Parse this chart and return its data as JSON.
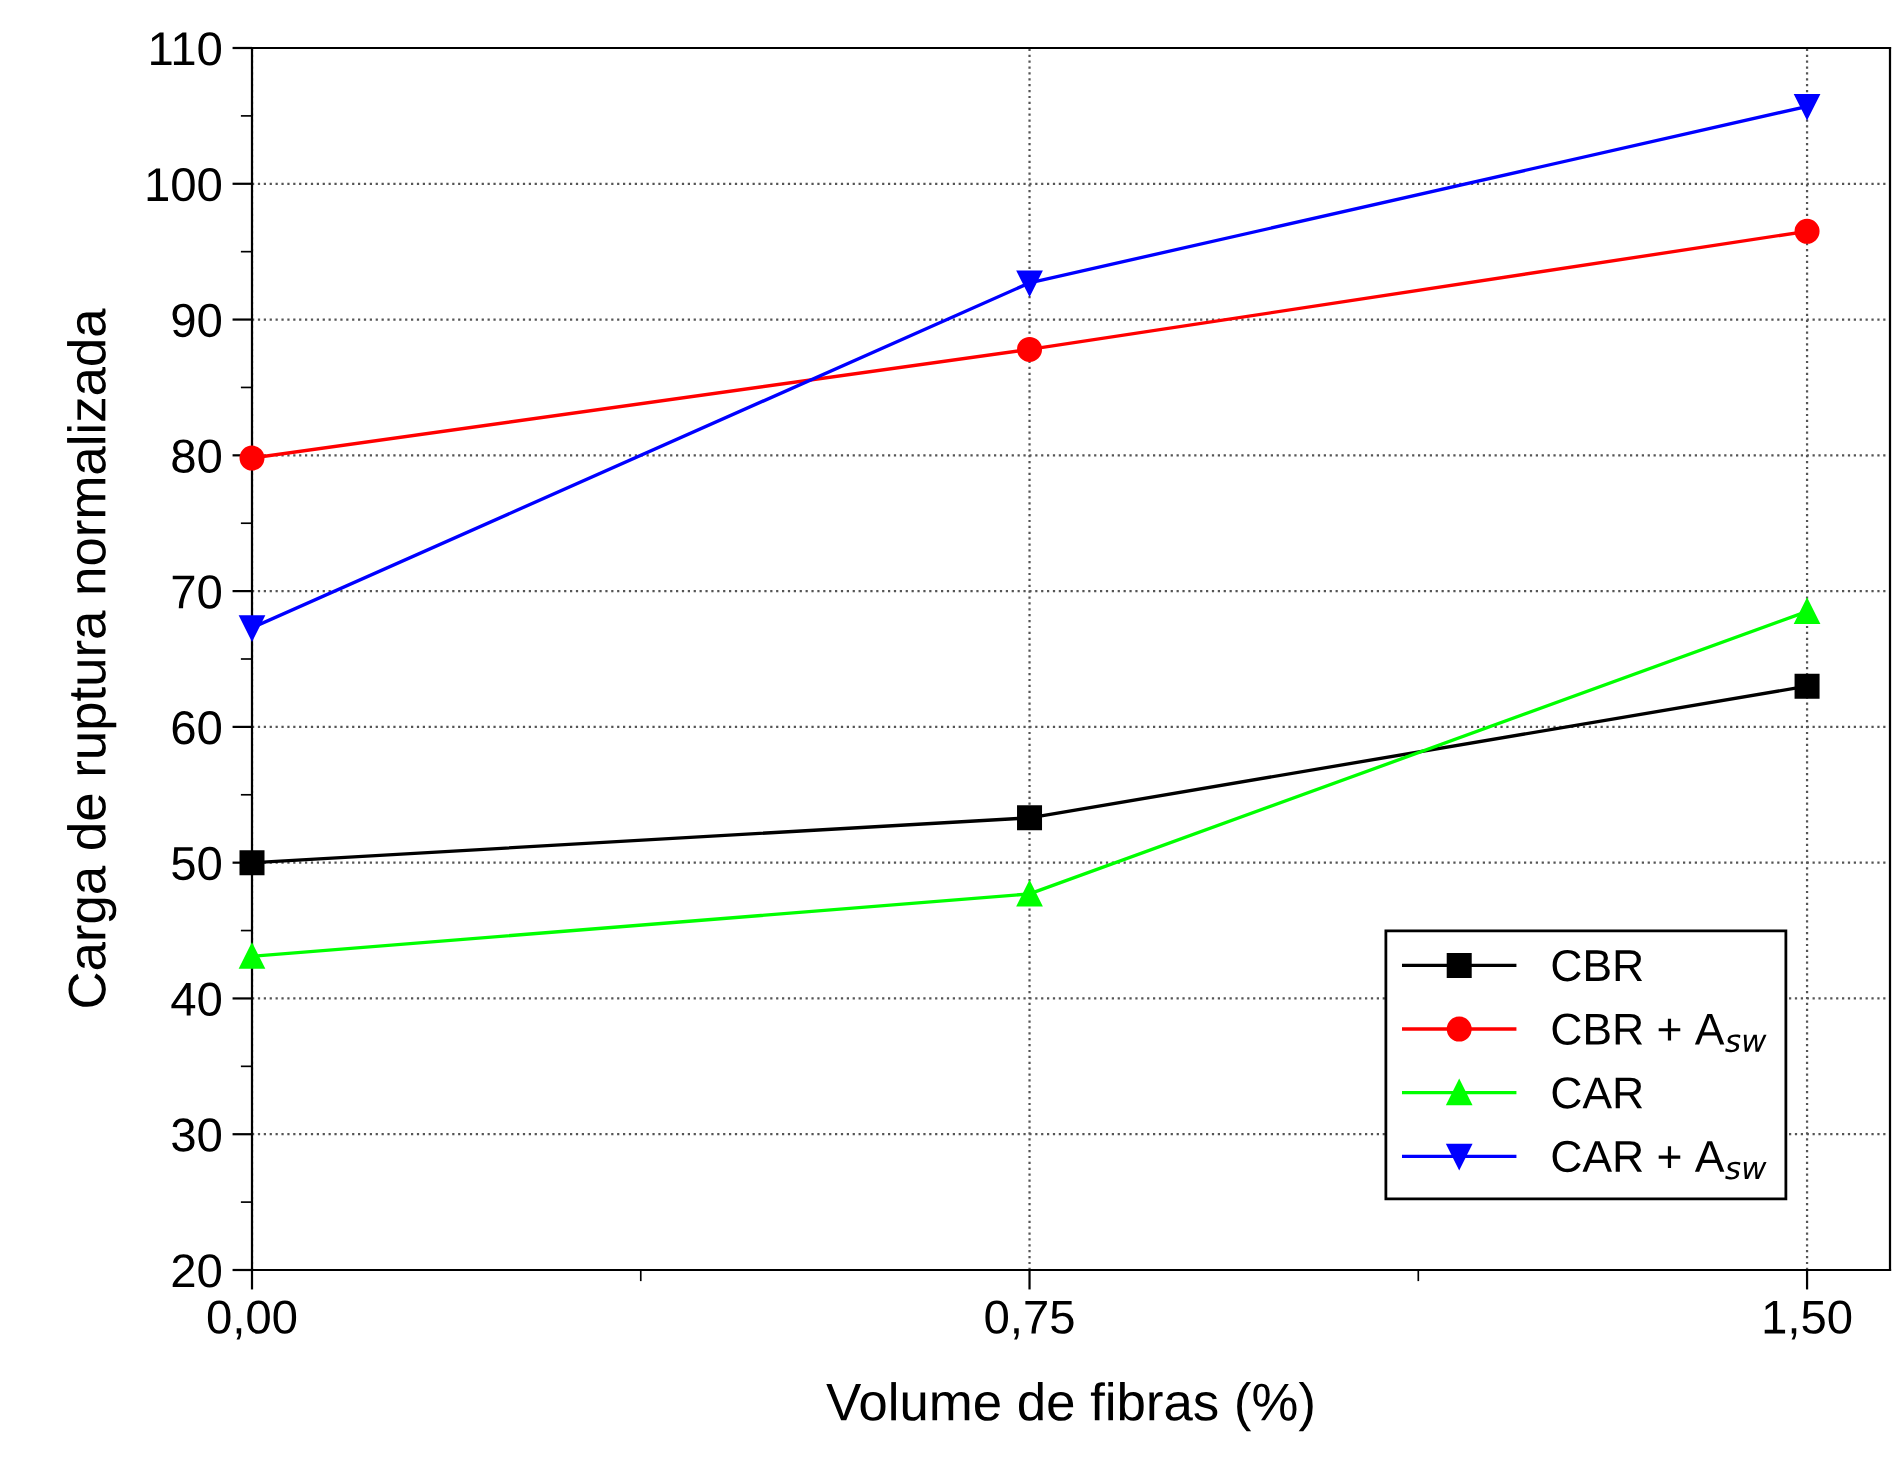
{
  "chart_data": {
    "type": "line",
    "xlabel": "Volume de fibras (%)",
    "ylabel": "Carga de ruptura normalizada",
    "x": [
      0,
      0.75,
      1.5
    ],
    "series": [
      {
        "name": "CBR",
        "color": "#000000",
        "marker": "square",
        "values": [
          50.0,
          53.3,
          63.0
        ]
      },
      {
        "name": "CBR + A$_{sw}$",
        "color": "#ff0000",
        "marker": "circle",
        "values": [
          79.8,
          87.8,
          96.5
        ]
      },
      {
        "name": "CAR",
        "color": "#00ff00",
        "marker": "triangle",
        "values": [
          43.1,
          47.7,
          68.5
        ]
      },
      {
        "name": "CAR + A$_{sw}$",
        "color": "#0000ff",
        "marker": "triangle_down",
        "values": [
          67.3,
          92.7,
          105.7
        ]
      }
    ],
    "xlim": [
      0,
      1.58
    ],
    "xticks": [
      {
        "value": 0,
        "label": "0,00"
      },
      {
        "value": 0.375,
        "label": null
      },
      {
        "value": 0.75,
        "label": "0,75"
      },
      {
        "value": 1.125,
        "label": null
      },
      {
        "value": 1.5,
        "label": "1,50"
      }
    ],
    "ylim": [
      20,
      110
    ],
    "yticks": [
      20,
      {
        "value": 25,
        "label": null
      },
      30,
      {
        "value": 35,
        "label": null
      },
      40,
      {
        "value": 45,
        "label": null
      },
      50,
      {
        "value": 55,
        "label": null
      },
      60,
      {
        "value": 65,
        "label": null
      },
      70,
      {
        "value": 75,
        "label": null
      },
      80,
      {
        "value": 85,
        "label": null
      },
      90,
      {
        "value": 95,
        "label": null
      },
      100,
      {
        "value": 105,
        "label": null
      },
      110
    ],
    "grid": true,
    "legend": "bottom right",
    "line_style": "solid"
  }
}
